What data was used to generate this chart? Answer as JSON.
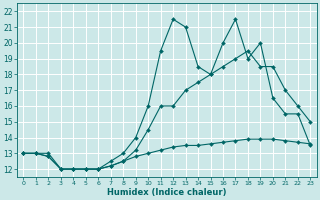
{
  "xlabel": "Humidex (Indice chaleur)",
  "bg_color": "#cce8e8",
  "grid_color": "#ffffff",
  "line_color": "#006666",
  "xlim": [
    -0.5,
    23.5
  ],
  "ylim": [
    11.5,
    22.5
  ],
  "xticks": [
    0,
    1,
    2,
    3,
    4,
    5,
    6,
    7,
    8,
    9,
    10,
    11,
    12,
    13,
    14,
    15,
    16,
    17,
    18,
    19,
    20,
    21,
    22,
    23
  ],
  "yticks": [
    12,
    13,
    14,
    15,
    16,
    17,
    18,
    19,
    20,
    21,
    22
  ],
  "series1_y": [
    13,
    13,
    13,
    12,
    12,
    12,
    12,
    12.5,
    13,
    14,
    16,
    19.5,
    21.5,
    21,
    18.5,
    18,
    20,
    21.5,
    19,
    20,
    16.5,
    15.5,
    15.5,
    13.5
  ],
  "series2_y": [
    13,
    13,
    12.8,
    12,
    12,
    12,
    12,
    12.2,
    12.5,
    13.2,
    14.5,
    16,
    16,
    17,
    17.5,
    18,
    18.5,
    19,
    19.5,
    18.5,
    18.5,
    17,
    16,
    15
  ],
  "series3_y": [
    13,
    13,
    12.8,
    12,
    12,
    12,
    12,
    12.2,
    12.5,
    12.8,
    13,
    13.2,
    13.4,
    13.5,
    13.5,
    13.6,
    13.7,
    13.8,
    13.9,
    13.9,
    13.9,
    13.8,
    13.7,
    13.6
  ]
}
